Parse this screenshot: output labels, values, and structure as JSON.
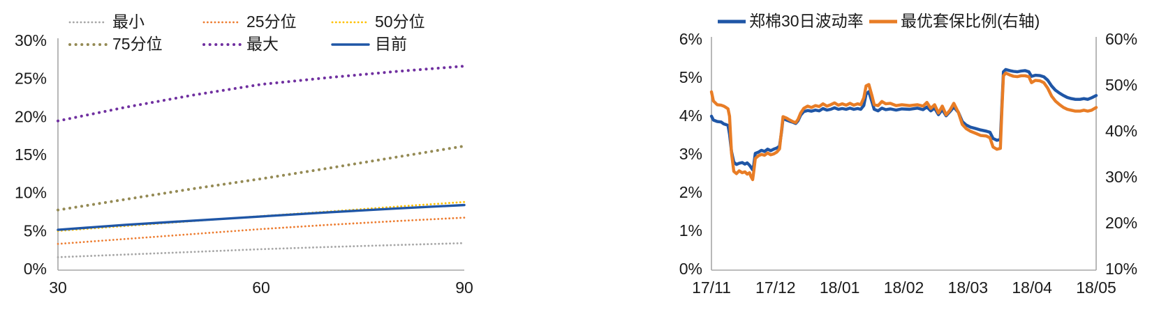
{
  "page": {
    "background": "#ffffff",
    "text_color": "#1a1a1a",
    "axis_color": "#a6a6a6"
  },
  "chart_data": [
    {
      "type": "line",
      "title": "",
      "xlabel": "",
      "ylabel": "",
      "grid": false,
      "legend_position": "top",
      "xlim": [
        30,
        90
      ],
      "ylim": [
        0,
        30
      ],
      "xtick_values": [
        30,
        60,
        90
      ],
      "xtick_labels": [
        "30",
        "60",
        "90"
      ],
      "ytick_values": [
        0,
        5,
        10,
        15,
        20,
        25,
        30
      ],
      "ytick_labels": [
        "0%",
        "5%",
        "10%",
        "15%",
        "20%",
        "25%",
        "30%"
      ],
      "x": [
        30,
        40,
        50,
        60,
        70,
        80,
        90
      ],
      "series": [
        {
          "id": "min",
          "name": "最小",
          "color": "#a6a6a6",
          "style": "dotted",
          "dot_width": 2.8,
          "dot_gap": 5.2,
          "values": [
            1.7,
            2.05,
            2.4,
            2.75,
            3.05,
            3.3,
            3.55
          ]
        },
        {
          "id": "p25",
          "name": "25分位",
          "color": "#ed7d31",
          "style": "dotted",
          "dot_width": 2.8,
          "dot_gap": 5.2,
          "values": [
            3.45,
            4.1,
            4.75,
            5.4,
            5.95,
            6.45,
            6.9
          ]
        },
        {
          "id": "p50",
          "name": "50分位",
          "color": "#ffc000",
          "style": "dotted",
          "dot_width": 2.8,
          "dot_gap": 5.2,
          "values": [
            5.15,
            5.8,
            6.45,
            7.1,
            7.7,
            8.35,
            8.95
          ]
        },
        {
          "id": "p75",
          "name": "75分位",
          "color": "#948a54",
          "style": "dotted",
          "dot_width": 4.0,
          "dot_gap": 8.5,
          "values": [
            7.9,
            9.3,
            10.7,
            12.0,
            13.4,
            14.85,
            16.3
          ]
        },
        {
          "id": "max",
          "name": "最大",
          "color": "#7030a0",
          "style": "dotted",
          "dot_width": 4.0,
          "dot_gap": 8.5,
          "values": [
            19.6,
            21.4,
            23.0,
            24.4,
            25.3,
            26.1,
            26.8
          ]
        },
        {
          "id": "current",
          "name": "目前",
          "color": "#1f56a6",
          "style": "solid",
          "line_width": 3.4,
          "values": [
            5.3,
            5.95,
            6.5,
            7.05,
            7.6,
            8.1,
            8.55
          ]
        }
      ]
    },
    {
      "type": "line",
      "title": "",
      "xlabel": "",
      "ylabel": "",
      "grid": false,
      "legend_position": "top",
      "dual_axis": true,
      "left_ylim": [
        0,
        6
      ],
      "left_ytick_values": [
        0,
        1,
        2,
        3,
        4,
        5,
        6
      ],
      "left_ytick_labels": [
        "0%",
        "1%",
        "2%",
        "3%",
        "4%",
        "5%",
        "6%"
      ],
      "right_ylim": [
        10,
        60
      ],
      "right_ytick_values": [
        10,
        20,
        30,
        40,
        50,
        60
      ],
      "right_ytick_labels": [
        "10%",
        "20%",
        "30%",
        "40%",
        "50%",
        "60%"
      ],
      "xtick_labels": [
        "17/11",
        "17/12",
        "18/01",
        "18/02",
        "18/03",
        "18/04",
        "18/05"
      ],
      "x_units": "percent-of-range",
      "x": [
        0,
        0.5,
        1.5,
        2.5,
        3.2,
        3.8,
        4.3,
        4.7,
        5.2,
        5.8,
        6.5,
        7.2,
        8,
        8.7,
        9.3,
        9.9,
        10.3,
        10.7,
        11,
        11.4,
        12.2,
        13,
        13.8,
        14.6,
        15.4,
        16.2,
        17,
        17.7,
        18.2,
        18.6,
        19.5,
        20.3,
        21.2,
        21.9,
        22.5,
        23.2,
        24,
        25,
        26,
        27,
        28,
        29,
        30,
        31,
        32,
        33,
        34,
        35,
        36,
        37,
        38,
        38.8,
        39.6,
        40.2,
        40.9,
        41.7,
        42.3,
        43.3,
        44.3,
        45.3,
        46.5,
        48,
        49.5,
        51.5,
        53.5,
        55,
        56,
        57,
        58,
        59,
        60,
        61,
        62,
        63,
        64.2,
        65.2,
        66.2,
        67.4,
        68.6,
        70,
        71.4,
        72.4,
        73.2,
        74.2,
        75.1,
        75.5,
        75.9,
        76.5,
        77.5,
        78.5,
        79.5,
        80.5,
        81.5,
        82.5,
        83.2,
        84.2,
        85.4,
        86.4,
        87.4,
        88.4,
        89.4,
        90.5,
        91.5,
        92.5,
        93.5,
        94.6,
        95.8,
        96.8,
        97.8,
        98.8,
        100
      ],
      "series": [
        {
          "id": "zhengmian-30d-volatility",
          "name": "郑棉30日波动率",
          "axis": "left",
          "color": "#1f56a6",
          "line_width": 4.4,
          "values": [
            4.02,
            3.92,
            3.88,
            3.87,
            3.82,
            3.8,
            3.78,
            3.55,
            3.1,
            2.82,
            2.76,
            2.79,
            2.81,
            2.77,
            2.8,
            2.74,
            2.68,
            2.62,
            2.75,
            3.05,
            3.08,
            3.13,
            3.1,
            3.16,
            3.12,
            3.16,
            3.19,
            3.24,
            3.6,
            3.96,
            3.92,
            3.89,
            3.86,
            3.83,
            3.9,
            4.05,
            4.14,
            4.17,
            4.15,
            4.18,
            4.16,
            4.22,
            4.18,
            4.2,
            4.24,
            4.2,
            4.22,
            4.2,
            4.23,
            4.2,
            4.22,
            4.2,
            4.3,
            4.6,
            4.66,
            4.4,
            4.2,
            4.16,
            4.23,
            4.19,
            4.21,
            4.18,
            4.21,
            4.2,
            4.23,
            4.19,
            4.26,
            4.16,
            4.23,
            4.06,
            4.19,
            4.03,
            4.14,
            4.26,
            4.12,
            3.88,
            3.79,
            3.73,
            3.7,
            3.66,
            3.63,
            3.6,
            3.44,
            3.39,
            3.41,
            4.3,
            5.18,
            5.24,
            5.21,
            5.19,
            5.18,
            5.2,
            5.21,
            5.18,
            5.06,
            5.09,
            5.08,
            5.05,
            4.96,
            4.81,
            4.7,
            4.62,
            4.56,
            4.51,
            4.48,
            4.46,
            4.46,
            4.48,
            4.46,
            4.5,
            4.56
          ]
        },
        {
          "id": "optimal-hedge-ratio",
          "name": "最优套保比例(右轴)",
          "axis": "right",
          "color": "#e87d26",
          "line_width": 4.4,
          "values": [
            48.8,
            46.8,
            46.0,
            45.9,
            45.7,
            45.4,
            45.1,
            43.5,
            35.5,
            31.5,
            31.0,
            31.6,
            31.2,
            31.4,
            30.9,
            31.2,
            30.3,
            29.7,
            31.5,
            34.3,
            34.9,
            35.2,
            35.0,
            35.5,
            35.1,
            35.3,
            35.7,
            36.4,
            40.3,
            43.4,
            43.1,
            42.7,
            42.3,
            42.1,
            42.8,
            44.2,
            45.2,
            45.7,
            45.4,
            45.8,
            45.6,
            46.2,
            45.7,
            46.0,
            46.4,
            45.9,
            46.2,
            45.9,
            46.3,
            45.9,
            46.2,
            46.0,
            47.5,
            50.1,
            50.4,
            48.0,
            46.0,
            45.8,
            46.7,
            46.2,
            46.3,
            45.8,
            46.0,
            45.8,
            46.0,
            45.7,
            46.5,
            45.2,
            46.0,
            44.2,
            45.7,
            43.8,
            44.8,
            46.3,
            44.3,
            41.7,
            40.8,
            40.2,
            39.8,
            39.3,
            39.2,
            38.8,
            36.8,
            36.3,
            36.5,
            45.0,
            52.3,
            52.9,
            52.5,
            52.2,
            52.1,
            52.3,
            52.3,
            52.1,
            50.8,
            51.3,
            51.2,
            50.8,
            49.6,
            47.9,
            46.8,
            46.0,
            45.4,
            45.0,
            44.8,
            44.6,
            44.6,
            44.8,
            44.6,
            44.8,
            45.4
          ]
        }
      ]
    }
  ]
}
